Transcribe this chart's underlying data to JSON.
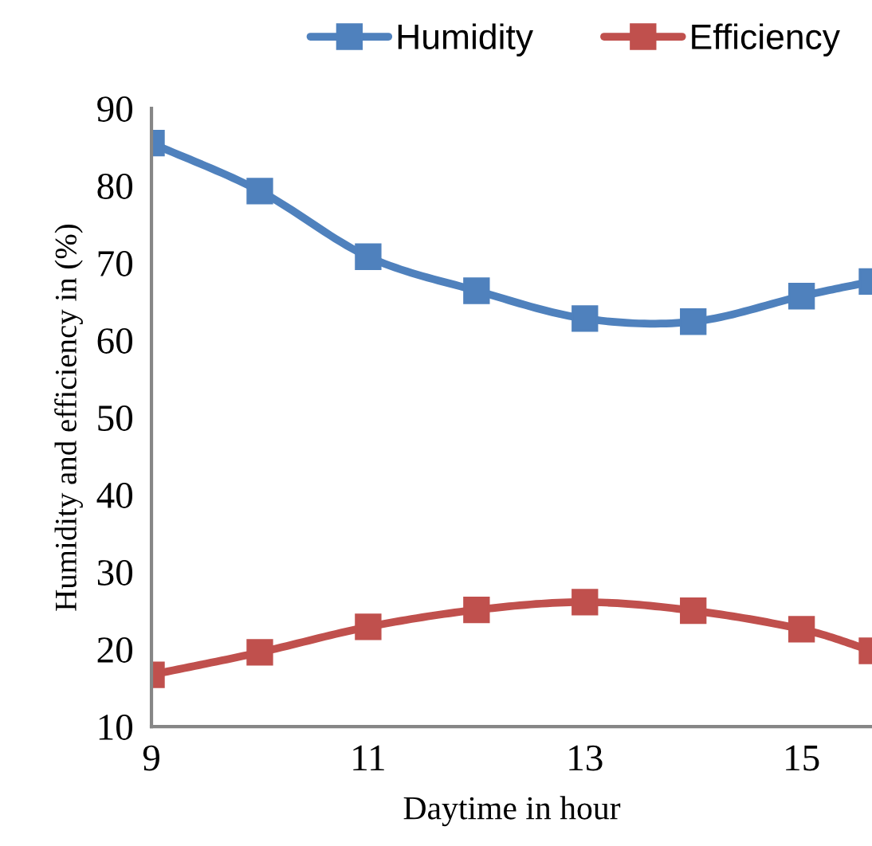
{
  "chart_data": {
    "type": "line",
    "xlabel": "Daytime in hour",
    "ylabel": "Humidity and efficiency in (%)",
    "x": [
      9,
      10,
      11,
      12,
      13,
      14,
      15,
      15.65
    ],
    "series": [
      {
        "name": "Humidity",
        "color": "#4f81bd",
        "values": [
          85.5,
          79.3,
          70.8,
          66.4,
          62.8,
          62.4,
          65.7,
          67.6
        ]
      },
      {
        "name": "Efficiency",
        "color": "#c0504d",
        "values": [
          16.7,
          19.6,
          22.9,
          25.1,
          26.1,
          25.0,
          22.6,
          19.8
        ]
      }
    ],
    "xlim": [
      9,
      15.65
    ],
    "xticks": [
      9,
      11,
      13,
      15
    ],
    "ylim": [
      10,
      90
    ],
    "yticks": [
      10,
      20,
      30,
      40,
      50,
      60,
      70,
      80,
      90
    ],
    "grid": false,
    "legend": "top",
    "marker": "square",
    "line_style": "solid"
  }
}
